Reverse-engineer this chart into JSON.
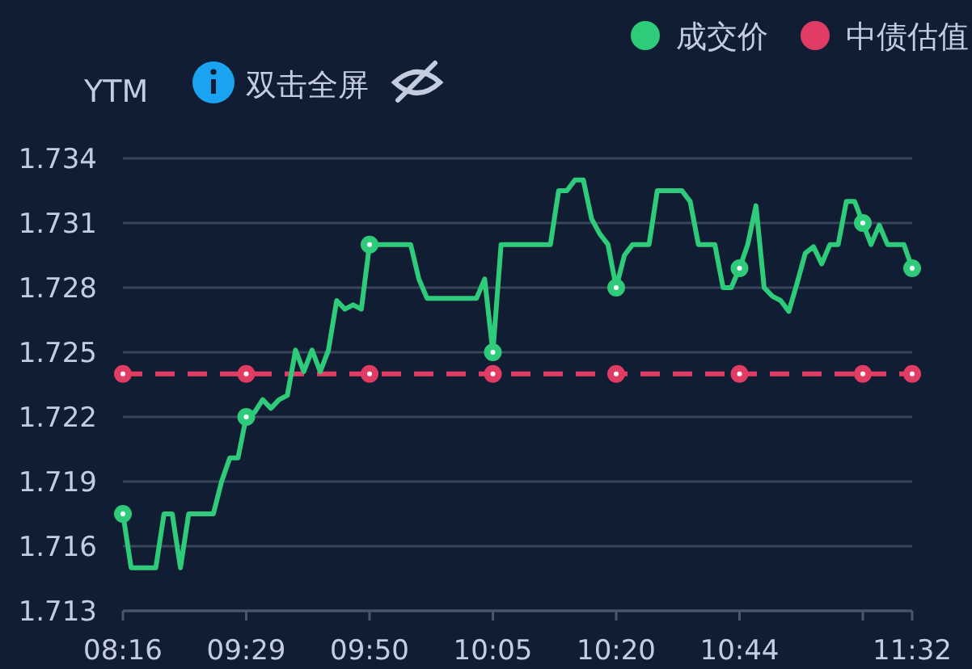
{
  "chart_data": {
    "type": "line",
    "ylabel": "YTM",
    "annotations": [
      "双击全屏"
    ],
    "legend": "top right",
    "grid": "y",
    "categories": [
      "08:16",
      null,
      null,
      null,
      null,
      null,
      null,
      null,
      null,
      null,
      null,
      null,
      null,
      null,
      null,
      "09:29",
      null,
      null,
      null,
      null,
      null,
      null,
      null,
      null,
      null,
      null,
      null,
      null,
      null,
      null,
      "09:50",
      null,
      null,
      null,
      null,
      null,
      null,
      null,
      null,
      null,
      null,
      null,
      null,
      null,
      null,
      "10:05",
      null,
      null,
      null,
      null,
      null,
      null,
      null,
      null,
      null,
      null,
      null,
      null,
      null,
      null,
      "10:20",
      null,
      null,
      null,
      null,
      null,
      null,
      null,
      null,
      null,
      null,
      null,
      null,
      null,
      null,
      "10:44",
      null,
      null,
      null,
      null,
      null,
      null,
      null,
      null,
      null,
      null,
      null,
      null,
      null,
      null,
      null,
      null,
      null,
      null,
      null,
      null,
      "11:32"
    ],
    "ylim": [
      1.713,
      1.734
    ],
    "yticks": [
      1.713,
      1.716,
      1.719,
      1.722,
      1.725,
      1.728,
      1.731,
      1.734
    ],
    "series": [
      {
        "name": "成交价",
        "color": "#2ecc7a",
        "line_style": "solid",
        "values": [
          1.7175,
          1.715,
          1.715,
          1.715,
          1.715,
          1.7175,
          1.7175,
          1.715,
          1.7175,
          1.7175,
          1.7175,
          1.7175,
          1.719,
          1.7201,
          1.7201,
          1.722,
          1.7222,
          1.7228,
          1.7224,
          1.7228,
          1.723,
          1.7251,
          1.7241,
          1.7251,
          1.7241,
          1.7251,
          1.7274,
          1.727,
          1.7272,
          1.727,
          1.73,
          1.73,
          1.73,
          1.73,
          1.73,
          1.73,
          1.7284,
          1.7275,
          1.7275,
          1.7275,
          1.7275,
          1.7275,
          1.7275,
          1.7275,
          1.7284,
          1.725,
          1.73,
          1.73,
          1.73,
          1.73,
          1.73,
          1.73,
          1.73,
          1.7325,
          1.7325,
          1.733,
          1.733,
          1.7312,
          1.7305,
          1.73,
          1.728,
          1.7295,
          1.73,
          1.73,
          1.73,
          1.7325,
          1.7325,
          1.7325,
          1.7325,
          1.732,
          1.73,
          1.73,
          1.73,
          1.728,
          1.728,
          1.7289,
          1.73,
          1.7318,
          1.728,
          1.7276,
          1.7274,
          1.7269,
          1.7282,
          1.7296,
          1.7299,
          1.7291,
          1.73,
          1.73,
          1.732,
          1.732,
          1.731,
          1.73,
          1.7309,
          1.73,
          1.73,
          1.73,
          1.7289
        ]
      },
      {
        "name": "中债估值",
        "color": "#e03c64",
        "line_style": "dashed",
        "values": [
          1.724,
          1.724,
          1.724,
          1.724,
          1.724,
          1.724,
          1.724,
          1.724,
          1.724,
          1.724,
          1.724,
          1.724,
          1.724,
          1.724,
          1.724,
          1.724,
          1.724,
          1.724,
          1.724,
          1.724,
          1.724,
          1.724,
          1.724,
          1.724,
          1.724,
          1.724,
          1.724,
          1.724,
          1.724,
          1.724,
          1.724,
          1.724,
          1.724,
          1.724,
          1.724,
          1.724,
          1.724,
          1.724,
          1.724,
          1.724,
          1.724,
          1.724,
          1.724,
          1.724,
          1.724,
          1.724,
          1.724,
          1.724,
          1.724,
          1.724,
          1.724,
          1.724,
          1.724,
          1.724,
          1.724,
          1.724,
          1.724,
          1.724,
          1.724,
          1.724,
          1.724,
          1.724,
          1.724,
          1.724,
          1.724,
          1.724,
          1.724,
          1.724,
          1.724,
          1.724,
          1.724,
          1.724,
          1.724,
          1.724,
          1.724,
          1.724,
          1.724,
          1.724,
          1.724,
          1.724,
          1.724,
          1.724,
          1.724,
          1.724,
          1.724,
          1.724,
          1.724,
          1.724,
          1.724,
          1.724,
          1.724,
          1.724,
          1.724,
          1.724,
          1.724,
          1.724,
          1.724
        ]
      }
    ]
  }
}
